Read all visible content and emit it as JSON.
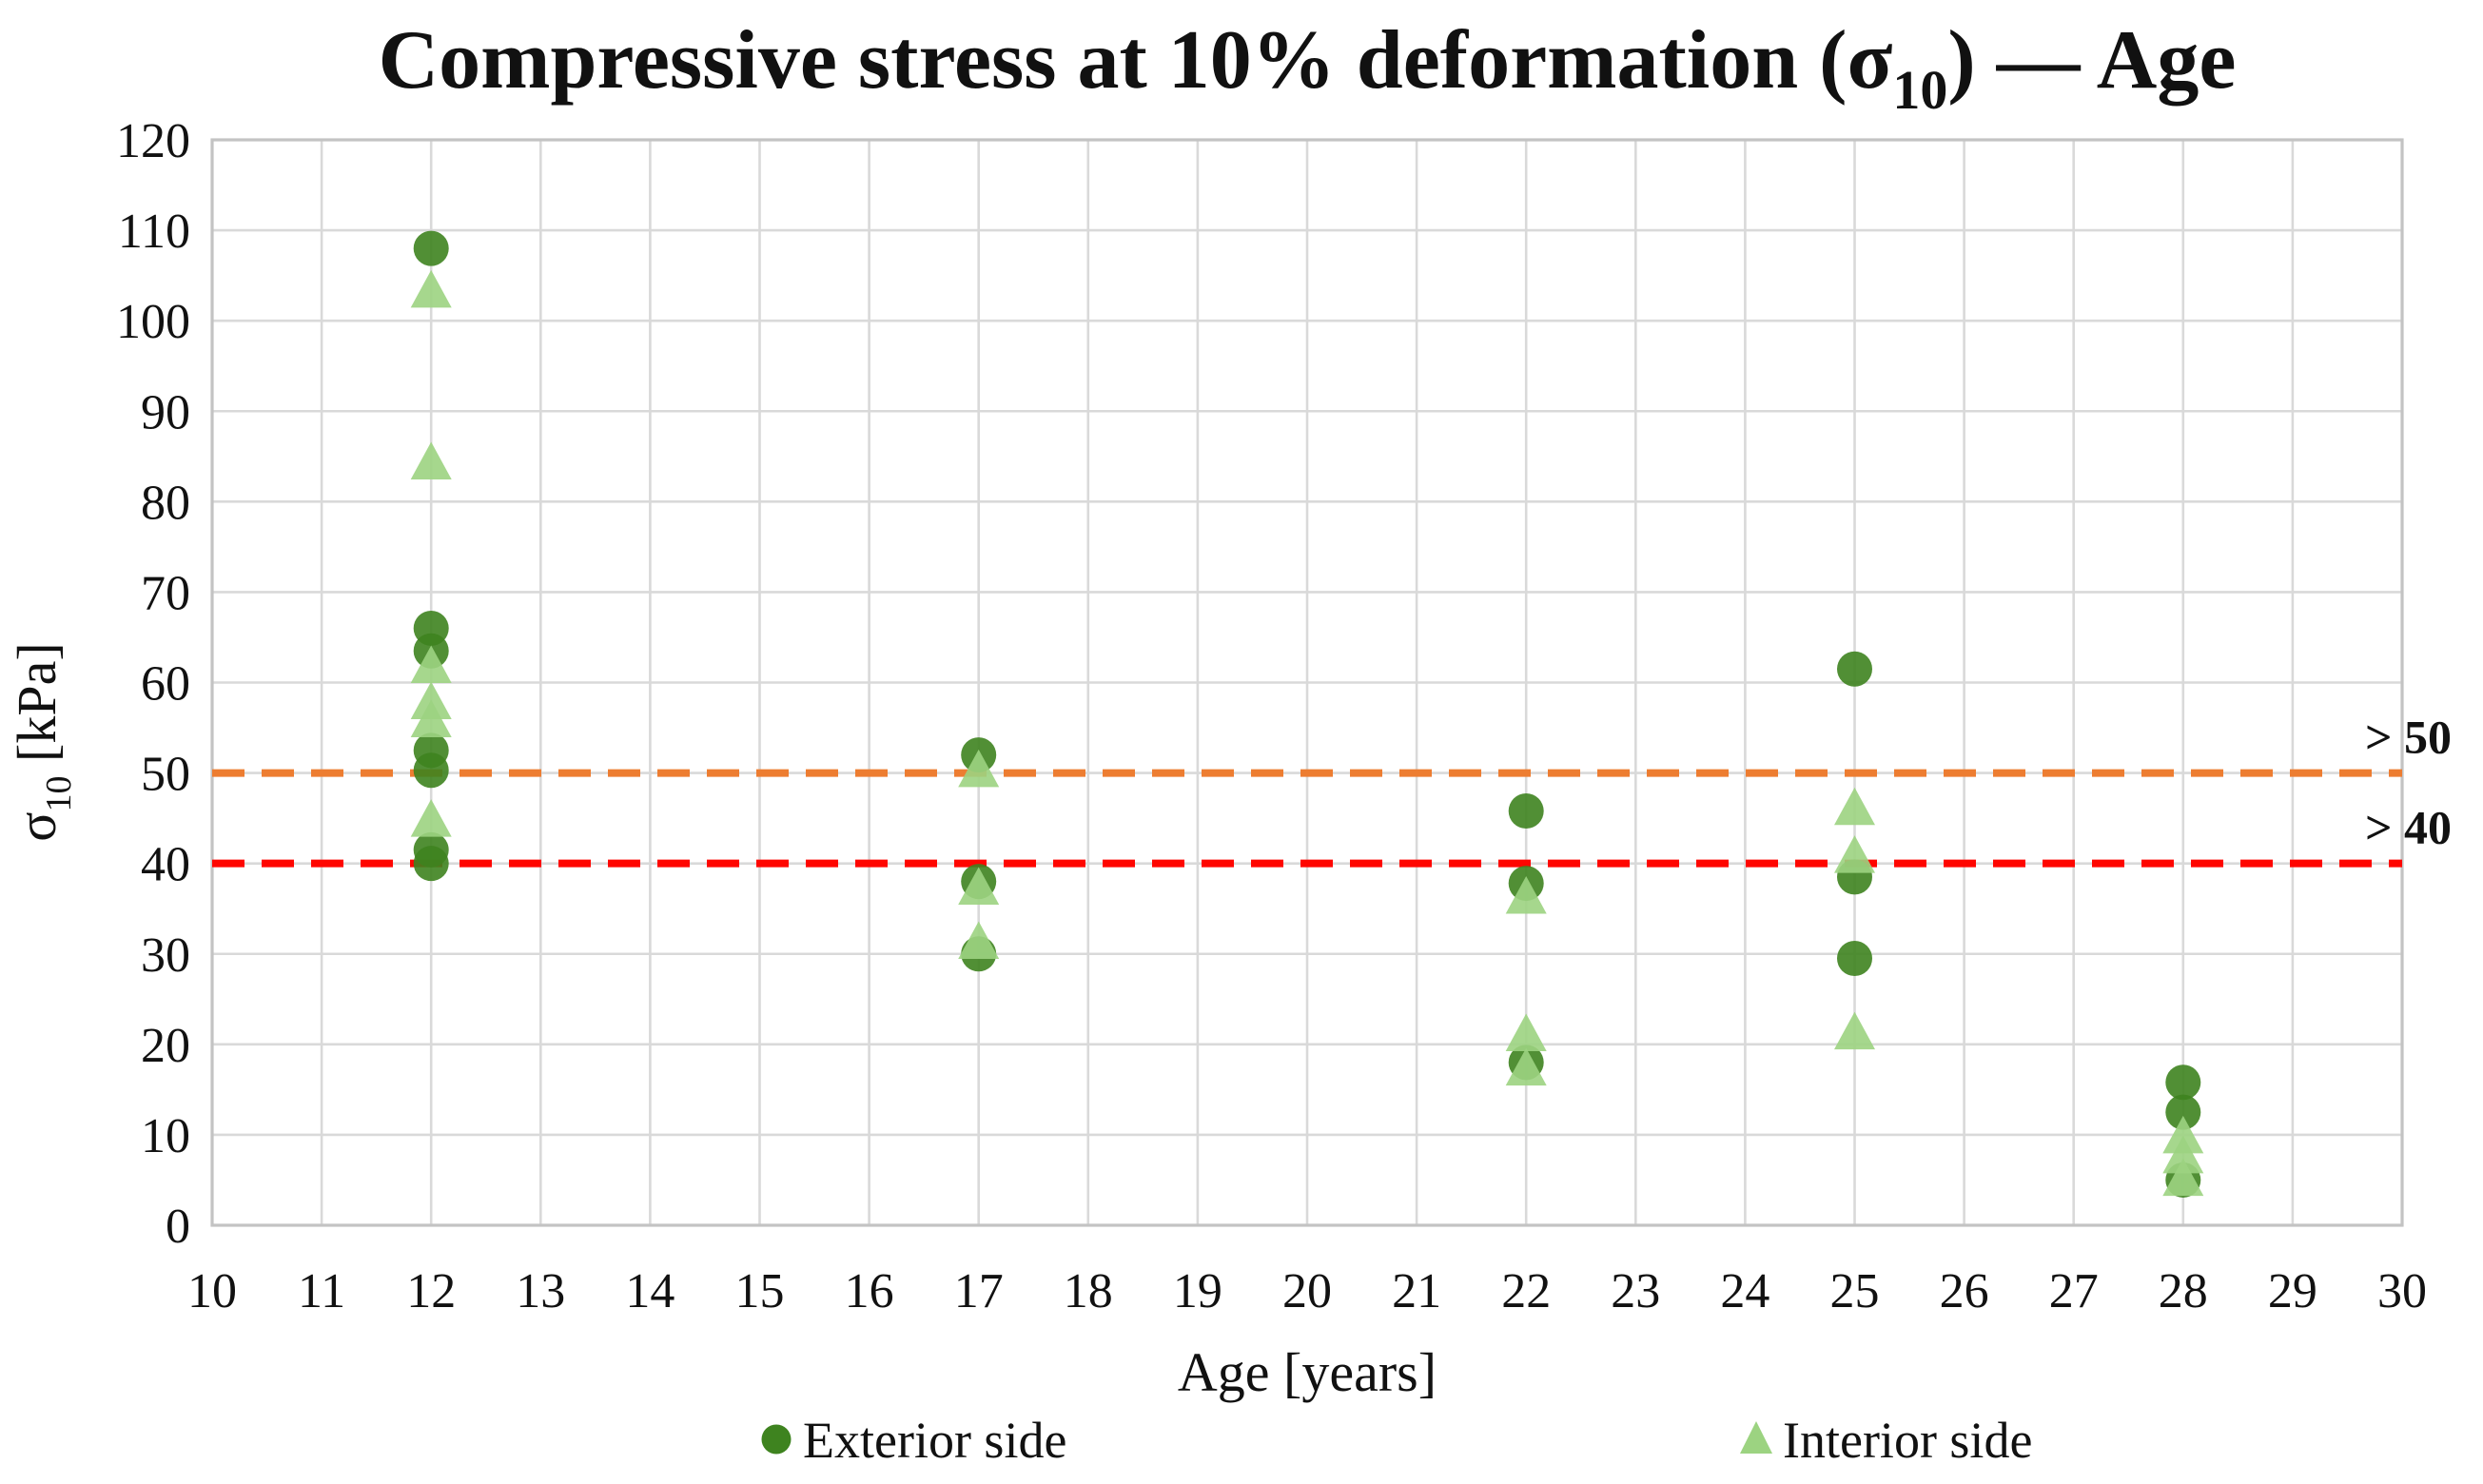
{
  "chart_data": {
    "type": "scatter",
    "title": {
      "pre": "Compressive stress at 10% deformation (σ",
      "sub": "10",
      "post": ") — Age"
    },
    "xlabel": "Age [years]",
    "ylabel": {
      "pre": "σ",
      "sub": "10",
      "post": " [kPa]"
    },
    "xlim": [
      10,
      30
    ],
    "ylim": [
      0,
      120
    ],
    "xticks": [
      10,
      11,
      12,
      13,
      14,
      15,
      16,
      17,
      18,
      19,
      20,
      21,
      22,
      23,
      24,
      25,
      26,
      27,
      28,
      29,
      30
    ],
    "yticks": [
      0,
      10,
      20,
      30,
      40,
      50,
      60,
      70,
      80,
      90,
      100,
      110,
      120
    ],
    "grid": true,
    "legend_position": "bottom",
    "colors": {
      "grid": "#d9d9d9",
      "border": "#c3c3c3",
      "text": "#111111"
    },
    "series": [
      {
        "name": "Exterior side",
        "marker": "circle",
        "color": "#3e831f",
        "points": [
          [
            12,
            108
          ],
          [
            12,
            66
          ],
          [
            12,
            63.5
          ],
          [
            12,
            52.5
          ],
          [
            12,
            50.3
          ],
          [
            12,
            41.5
          ],
          [
            12,
            40
          ],
          [
            17,
            52
          ],
          [
            17,
            38
          ],
          [
            17,
            30
          ],
          [
            22,
            45.8
          ],
          [
            22,
            37.8
          ],
          [
            22,
            18
          ],
          [
            25,
            61.5
          ],
          [
            25,
            38.5
          ],
          [
            25,
            29.5
          ],
          [
            28,
            15.8
          ],
          [
            28,
            12.5
          ],
          [
            28,
            5
          ]
        ]
      },
      {
        "name": "Interior side",
        "marker": "triangle",
        "color": "#9cd381",
        "points": [
          [
            12,
            103.5
          ],
          [
            12,
            84.5
          ],
          [
            12,
            62
          ],
          [
            12,
            58
          ],
          [
            12,
            56
          ],
          [
            12,
            45
          ],
          [
            17,
            50.5
          ],
          [
            17,
            37.5
          ],
          [
            17,
            31.5
          ],
          [
            22,
            36.5
          ],
          [
            22,
            21.3
          ],
          [
            22,
            17.5
          ],
          [
            25,
            46.3
          ],
          [
            25,
            41
          ],
          [
            25,
            21.5
          ],
          [
            28,
            10
          ],
          [
            28,
            7.8
          ],
          [
            28,
            5.3
          ]
        ]
      }
    ],
    "reference_lines": [
      {
        "label": "> 50",
        "value": 50,
        "color": "#ED7D31"
      },
      {
        "label": "> 40",
        "value": 40,
        "color": "#FF0600"
      }
    ]
  }
}
